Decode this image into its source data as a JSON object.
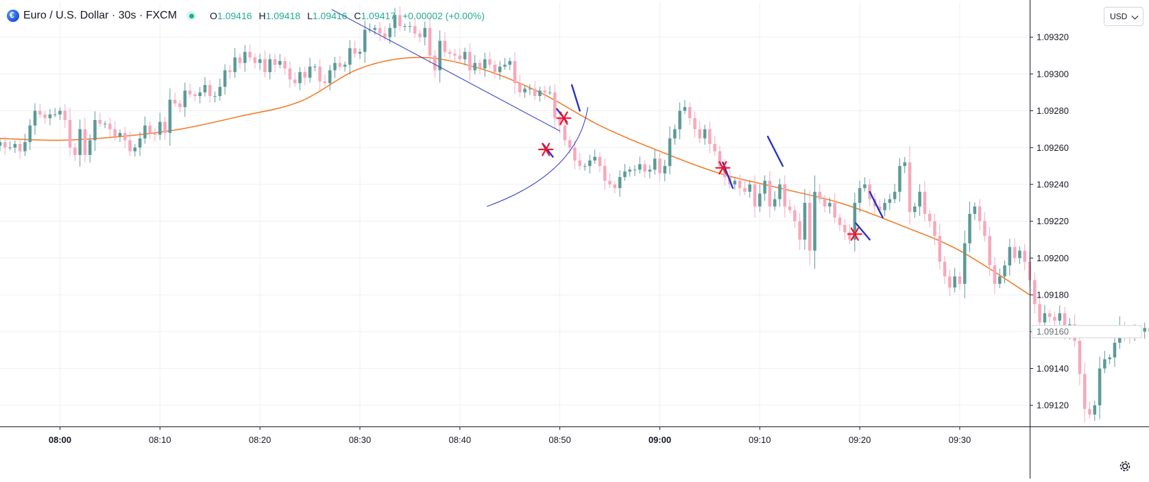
{
  "header": {
    "symbol_title": "Euro / U.S. Dollar · 30s · FXCM",
    "open_key": "O",
    "open": "1.09416",
    "high_key": "H",
    "high": "1.09418",
    "low_key": "L",
    "low": "1.09416",
    "close_key": "C",
    "close": "1.09417",
    "change": "+0.00002 (+0.00%)"
  },
  "currency_selector": {
    "label": "USD"
  },
  "colors": {
    "up": "#5b9a98",
    "down": "#f7a8ba",
    "ma": "#f57c2a",
    "trendline": "#2431c9",
    "marker": "#f2102e",
    "grid": "#eceff3",
    "axis_text": "#131722"
  },
  "icons": {
    "symbol": "euro-globe-icon",
    "status": "market-open-dot-icon",
    "settings": "gear-icon"
  },
  "chart_data": {
    "type": "candlestick",
    "symbol": "EUR/USD",
    "interval": "30s",
    "x_tick_labels": [
      "08:00",
      "08:10",
      "08:20",
      "08:30",
      "08:40",
      "08:50",
      "09:00",
      "09:10",
      "09:20",
      "09:30"
    ],
    "x_tick_bold": [
      "08:00",
      "09:00"
    ],
    "x_tick_minutes": [
      0,
      10,
      20,
      30,
      40,
      50,
      60,
      70,
      80,
      90
    ],
    "x_range_minutes": [
      -6,
      97
    ],
    "y_tick_labels": [
      "1.09320",
      "1.09300",
      "1.09280",
      "1.09260",
      "1.09240",
      "1.09220",
      "1.09200",
      "1.09180",
      "1.09160",
      "1.09140",
      "1.09120"
    ],
    "y_ticks": [
      1.0932,
      1.093,
      1.0928,
      1.0926,
      1.0924,
      1.0922,
      1.092,
      1.0918,
      1.0916,
      1.0914,
      1.0912
    ],
    "y_range": [
      1.091085,
      1.093387
    ],
    "last_price_label": "1.09160",
    "last_price": 1.0916,
    "grid": true,
    "candle_start_minute": -6,
    "candle_step_minutes": 0.5,
    "closes": [
      1.09263,
      1.0926,
      1.0926,
      1.09262,
      1.09258,
      1.09263,
      1.09272,
      1.0928,
      1.09278,
      1.09276,
      1.09278,
      1.09278,
      1.0928,
      1.09275,
      1.0926,
      1.09256,
      1.0927,
      1.09256,
      1.09264,
      1.09275,
      1.09273,
      1.09273,
      1.0927,
      1.09266,
      1.09268,
      1.09264,
      1.09258,
      1.0926,
      1.09265,
      1.09272,
      1.09268,
      1.09267,
      1.09274,
      1.09268,
      1.09286,
      1.09284,
      1.09282,
      1.09291,
      1.09289,
      1.09288,
      1.0929,
      1.09294,
      1.09288,
      1.09288,
      1.09293,
      1.09302,
      1.09301,
      1.09309,
      1.09306,
      1.09312,
      1.09309,
      1.09306,
      1.09308,
      1.09301,
      1.09308,
      1.09305,
      1.09307,
      1.09303,
      1.09297,
      1.09295,
      1.09301,
      1.09298,
      1.09304,
      1.09304,
      1.09296,
      1.09295,
      1.09302,
      1.09306,
      1.09304,
      1.09305,
      1.09314,
      1.09311,
      1.09312,
      1.09324,
      1.09324,
      1.09325,
      1.09322,
      1.0932,
      1.09325,
      1.09332,
      1.09326,
      1.09326,
      1.09326,
      1.09322,
      1.0932,
      1.09325,
      1.0931,
      1.09302,
      1.09318,
      1.09312,
      1.09311,
      1.0931,
      1.09308,
      1.09312,
      1.09302,
      1.09306,
      1.09303,
      1.09308,
      1.09305,
      1.09301,
      1.09304,
      1.09305,
      1.09307,
      1.09295,
      1.0929,
      1.09292,
      1.09292,
      1.09288,
      1.09291,
      1.0929,
      1.0929,
      1.09276,
      1.09272,
      1.09264,
      1.0926,
      1.09253,
      1.0925,
      1.0925,
      1.09253,
      1.09255,
      1.0925,
      1.09242,
      1.0924,
      1.09238,
      1.09244,
      1.09247,
      1.09248,
      1.09248,
      1.09251,
      1.09247,
      1.09248,
      1.09254,
      1.09246,
      1.0925,
      1.09265,
      1.0927,
      1.0928,
      1.09282,
      1.09276,
      1.0927,
      1.09265,
      1.0927,
      1.09262,
      1.09258,
      1.0925,
      1.09244,
      1.0924,
      1.09242,
      1.09238,
      1.09236,
      1.0924,
      1.09228,
      1.09235,
      1.09242,
      1.09228,
      1.09232,
      1.0924,
      1.09228,
      1.09226,
      1.0922,
      1.0921,
      1.0923,
      1.09204,
      1.09236,
      1.09232,
      1.09228,
      1.0923,
      1.09222,
      1.09218,
      1.09214,
      1.0921,
      1.0923,
      1.09238,
      1.0924,
      1.09232,
      1.09228,
      1.09226,
      1.0923,
      1.09232,
      1.09236,
      1.0925,
      1.09252,
      1.09225,
      1.09228,
      1.09236,
      1.09224,
      1.0922,
      1.09212,
      1.09198,
      1.0919,
      1.09184,
      1.0919,
      1.09186,
      1.09208,
      1.09224,
      1.09228,
      1.0922,
      1.09212,
      1.09196,
      1.09186,
      1.0919,
      1.09196,
      1.09206,
      1.092,
      1.09204,
      1.09198,
      1.09188,
      1.09175,
      1.09165,
      1.0917,
      1.09168,
      1.09166,
      1.0917,
      1.0916,
      1.09164,
      1.09155,
      1.09137,
      1.09118,
      1.09115,
      1.0912,
      1.0914,
      1.09145,
      1.09146,
      1.09154,
      1.09163,
      1.09158,
      1.09157,
      1.0916,
      1.0916,
      1.09162,
      1.0916
    ],
    "moving_average": {
      "minutes": [
        -6,
        0,
        6,
        12,
        18,
        24,
        30,
        36,
        42,
        48,
        54,
        60,
        66,
        72,
        78,
        84,
        90,
        97
      ],
      "values": [
        1.09265,
        1.09264,
        1.09266,
        1.0927,
        1.09277,
        1.09285,
        1.09303,
        1.09309,
        1.09303,
        1.0929,
        1.09272,
        1.09258,
        1.09246,
        1.09238,
        1.0923,
        1.09218,
        1.09204,
        1.0918
      ]
    },
    "drawings": {
      "trendlines": [
        {
          "from": [
            27.2,
            1.09335
          ],
          "to": [
            50.0,
            1.09269
          ]
        },
        {
          "from": [
            42.7,
            1.09228
          ],
          "to": [
            52.8,
            1.09282
          ],
          "curved": true
        },
        {
          "from": [
            51.2,
            1.09294
          ],
          "to": [
            52.0,
            1.0928
          ]
        },
        {
          "from": [
            66.3,
            1.09252
          ],
          "to": [
            67.3,
            1.09238
          ]
        },
        {
          "from": [
            70.8,
            1.09266
          ],
          "to": [
            72.3,
            1.0925
          ]
        },
        {
          "from": [
            79.6,
            1.09219
          ],
          "to": [
            81.0,
            1.0921
          ]
        },
        {
          "from": [
            81.0,
            1.09236
          ],
          "to": [
            82.3,
            1.09222
          ]
        },
        {
          "from": [
            48.3,
            1.09262
          ],
          "to": [
            49.3,
            1.09255
          ]
        },
        {
          "from": [
            49.7,
            1.09281
          ],
          "to": [
            50.7,
            1.09274
          ]
        }
      ],
      "markers": [
        [
          48.6,
          1.09259
        ],
        [
          50.4,
          1.09276
        ],
        [
          66.3,
          1.09249
        ],
        [
          79.5,
          1.09213
        ]
      ]
    }
  }
}
